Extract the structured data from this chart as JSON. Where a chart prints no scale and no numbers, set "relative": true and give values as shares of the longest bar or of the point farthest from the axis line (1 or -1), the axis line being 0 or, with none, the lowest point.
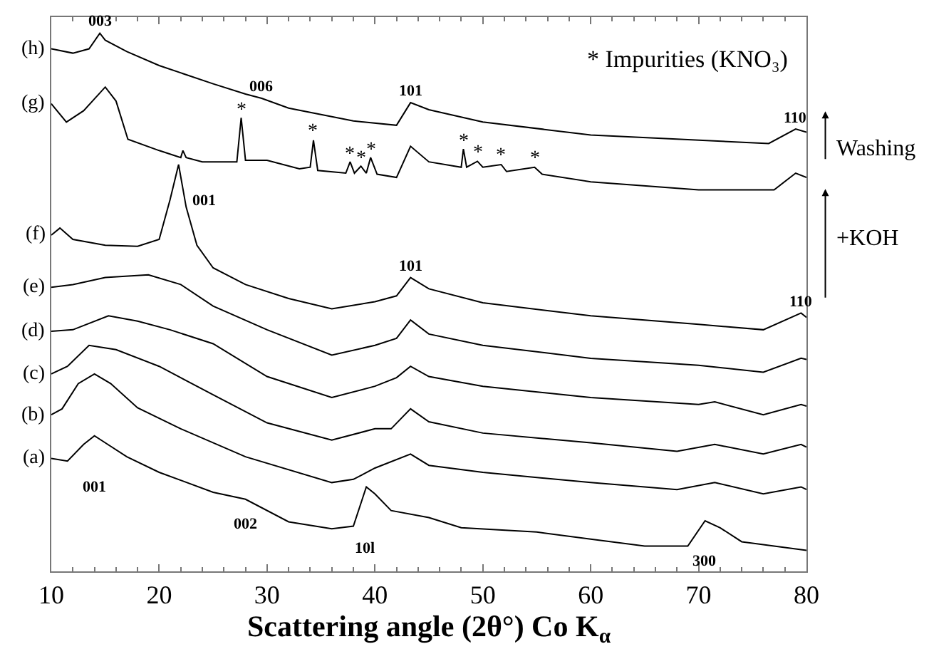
{
  "chart_data": {
    "type": "line",
    "relative": true,
    "xlabel": "Scattering angle (2θ°) Co K$_{α}$",
    "xlim": [
      10,
      80
    ],
    "xticks": [
      10,
      20,
      30,
      40,
      50,
      60,
      70,
      80
    ],
    "legend": false,
    "marker": "none",
    "line_style": "solid",
    "series": [
      {
        "name": "(h)",
        "color": "#000000",
        "x": [
          10,
          12,
          13.5,
          14.5,
          15,
          17,
          20,
          25,
          28,
          29.5,
          32,
          38,
          42,
          43.3,
          45,
          50,
          60,
          76.5,
          79,
          80
        ],
        "values": [
          0.971,
          0.963,
          0.971,
          1.0,
          0.987,
          0.966,
          0.94,
          0.906,
          0.887,
          0.879,
          0.861,
          0.837,
          0.829,
          0.871,
          0.858,
          0.835,
          0.811,
          0.795,
          0.822,
          0.816
        ]
      },
      {
        "name": "(g)",
        "color": "#000000",
        "x": [
          10,
          11.4,
          13,
          15,
          16,
          17.1,
          20,
          22,
          22.2,
          22.5,
          24,
          27.2,
          27.6,
          28,
          30,
          33,
          34,
          34.3,
          34.7,
          37.3,
          37.7,
          38.1,
          38.7,
          39.2,
          39.6,
          40.2,
          42,
          43.3,
          45,
          48,
          48.2,
          48.5,
          49.5,
          50,
          51.7,
          52.2,
          54.8,
          55.5,
          60,
          70,
          77,
          79,
          80
        ],
        "values": [
          0.869,
          0.835,
          0.856,
          0.9,
          0.874,
          0.803,
          0.782,
          0.769,
          0.782,
          0.769,
          0.761,
          0.761,
          0.843,
          0.764,
          0.764,
          0.748,
          0.751,
          0.801,
          0.745,
          0.74,
          0.761,
          0.74,
          0.753,
          0.74,
          0.769,
          0.738,
          0.732,
          0.79,
          0.761,
          0.751,
          0.785,
          0.751,
          0.762,
          0.751,
          0.756,
          0.743,
          0.751,
          0.738,
          0.724,
          0.709,
          0.709,
          0.74,
          0.732
        ]
      },
      {
        "name": "(f)",
        "color": "#000000",
        "x": [
          10,
          10.8,
          12,
          15,
          18,
          20,
          21,
          21.8,
          22.5,
          23.5,
          25,
          28,
          32,
          36,
          40,
          42,
          43.3,
          45,
          50,
          60,
          70,
          76,
          79.5,
          80
        ],
        "values": [
          0.625,
          0.638,
          0.617,
          0.606,
          0.604,
          0.617,
          0.69,
          0.756,
          0.677,
          0.606,
          0.564,
          0.533,
          0.507,
          0.488,
          0.501,
          0.512,
          0.546,
          0.525,
          0.499,
          0.475,
          0.459,
          0.449,
          0.48,
          0.472
        ]
      },
      {
        "name": "(e)",
        "color": "#000000",
        "x": [
          10,
          12,
          15,
          19,
          22,
          25,
          30,
          36,
          40,
          42,
          43.3,
          45,
          50,
          60,
          70,
          76,
          79.5,
          80
        ],
        "values": [
          0.528,
          0.533,
          0.546,
          0.551,
          0.533,
          0.493,
          0.449,
          0.402,
          0.42,
          0.433,
          0.467,
          0.441,
          0.42,
          0.396,
          0.383,
          0.37,
          0.396,
          0.394
        ]
      },
      {
        "name": "(d)",
        "color": "#000000",
        "x": [
          10,
          12,
          15.3,
          18,
          21,
          25,
          30,
          36,
          40,
          42,
          43.3,
          45,
          50,
          60,
          70,
          71.5,
          76,
          79.5,
          80
        ],
        "values": [
          0.446,
          0.449,
          0.475,
          0.465,
          0.449,
          0.423,
          0.362,
          0.323,
          0.344,
          0.36,
          0.381,
          0.362,
          0.344,
          0.323,
          0.31,
          0.315,
          0.291,
          0.31,
          0.307
        ]
      },
      {
        "name": "(c)",
        "color": "#000000",
        "x": [
          10,
          11.5,
          13.5,
          16,
          20,
          25,
          30,
          36,
          40,
          41.5,
          43.3,
          45,
          50,
          60,
          68,
          71.5,
          76,
          79.5,
          80
        ],
        "values": [
          0.367,
          0.381,
          0.42,
          0.412,
          0.381,
          0.328,
          0.276,
          0.244,
          0.265,
          0.265,
          0.302,
          0.278,
          0.257,
          0.239,
          0.223,
          0.236,
          0.218,
          0.236,
          0.231
        ]
      },
      {
        "name": "(b)",
        "color": "#000000",
        "x": [
          10,
          11,
          12.5,
          14,
          15.5,
          18,
          22,
          28,
          36,
          38,
          40,
          43.3,
          45,
          50,
          60,
          68,
          71.5,
          76,
          79.5,
          80
        ],
        "values": [
          0.291,
          0.302,
          0.349,
          0.367,
          0.349,
          0.304,
          0.265,
          0.213,
          0.165,
          0.171,
          0.192,
          0.218,
          0.197,
          0.184,
          0.165,
          0.152,
          0.165,
          0.144,
          0.157,
          0.152
        ]
      },
      {
        "name": "(a)",
        "color": "#000000",
        "x": [
          10,
          11.5,
          13,
          14,
          15,
          17,
          20,
          25,
          28,
          32,
          36,
          38,
          39.2,
          40,
          41.5,
          45,
          48,
          55,
          60,
          65,
          69,
          70.6,
          72,
          74,
          77,
          80
        ],
        "values": [
          0.21,
          0.205,
          0.236,
          0.252,
          0.239,
          0.213,
          0.184,
          0.147,
          0.134,
          0.092,
          0.079,
          0.084,
          0.157,
          0.144,
          0.113,
          0.1,
          0.081,
          0.073,
          0.06,
          0.047,
          0.047,
          0.094,
          0.081,
          0.055,
          0.047,
          0.039
        ]
      }
    ],
    "annotations": [
      {
        "text": "003",
        "x": 14.5,
        "y": 1.0
      },
      {
        "text": "006",
        "x": 29.5,
        "y": 0.879
      },
      {
        "text": "101",
        "x": 43.3,
        "y": 0.871
      },
      {
        "text": "110",
        "x": 79,
        "y": 0.822
      },
      {
        "text": "*",
        "x": 27.6,
        "y": 0.843
      },
      {
        "text": "*",
        "x": 34.3,
        "y": 0.801
      },
      {
        "text": "*",
        "x": 37.7,
        "y": 0.761
      },
      {
        "text": "*",
        "x": 38.7,
        "y": 0.753
      },
      {
        "text": "*",
        "x": 39.6,
        "y": 0.769
      },
      {
        "text": "*",
        "x": 48.2,
        "y": 0.785
      },
      {
        "text": "*",
        "x": 49.5,
        "y": 0.762
      },
      {
        "text": "*",
        "x": 51.7,
        "y": 0.756
      },
      {
        "text": "*",
        "x": 54.8,
        "y": 0.751
      },
      {
        "text": "001",
        "x": 21.8,
        "y": 0.756
      },
      {
        "text": "101",
        "x": 43.3,
        "y": 0.546
      },
      {
        "text": "110",
        "x": 79.5,
        "y": 0.48
      },
      {
        "text": "001",
        "x": 14,
        "y": 0.252
      },
      {
        "text": "002",
        "x": 28,
        "y": 0.134
      },
      {
        "text": "10l",
        "x": 38,
        "y": 0.084
      },
      {
        "text": "300",
        "x": 70.6,
        "y": 0.094
      },
      "* Impurities (KNO₃)",
      "Washing",
      "+KOH"
    ]
  }
}
